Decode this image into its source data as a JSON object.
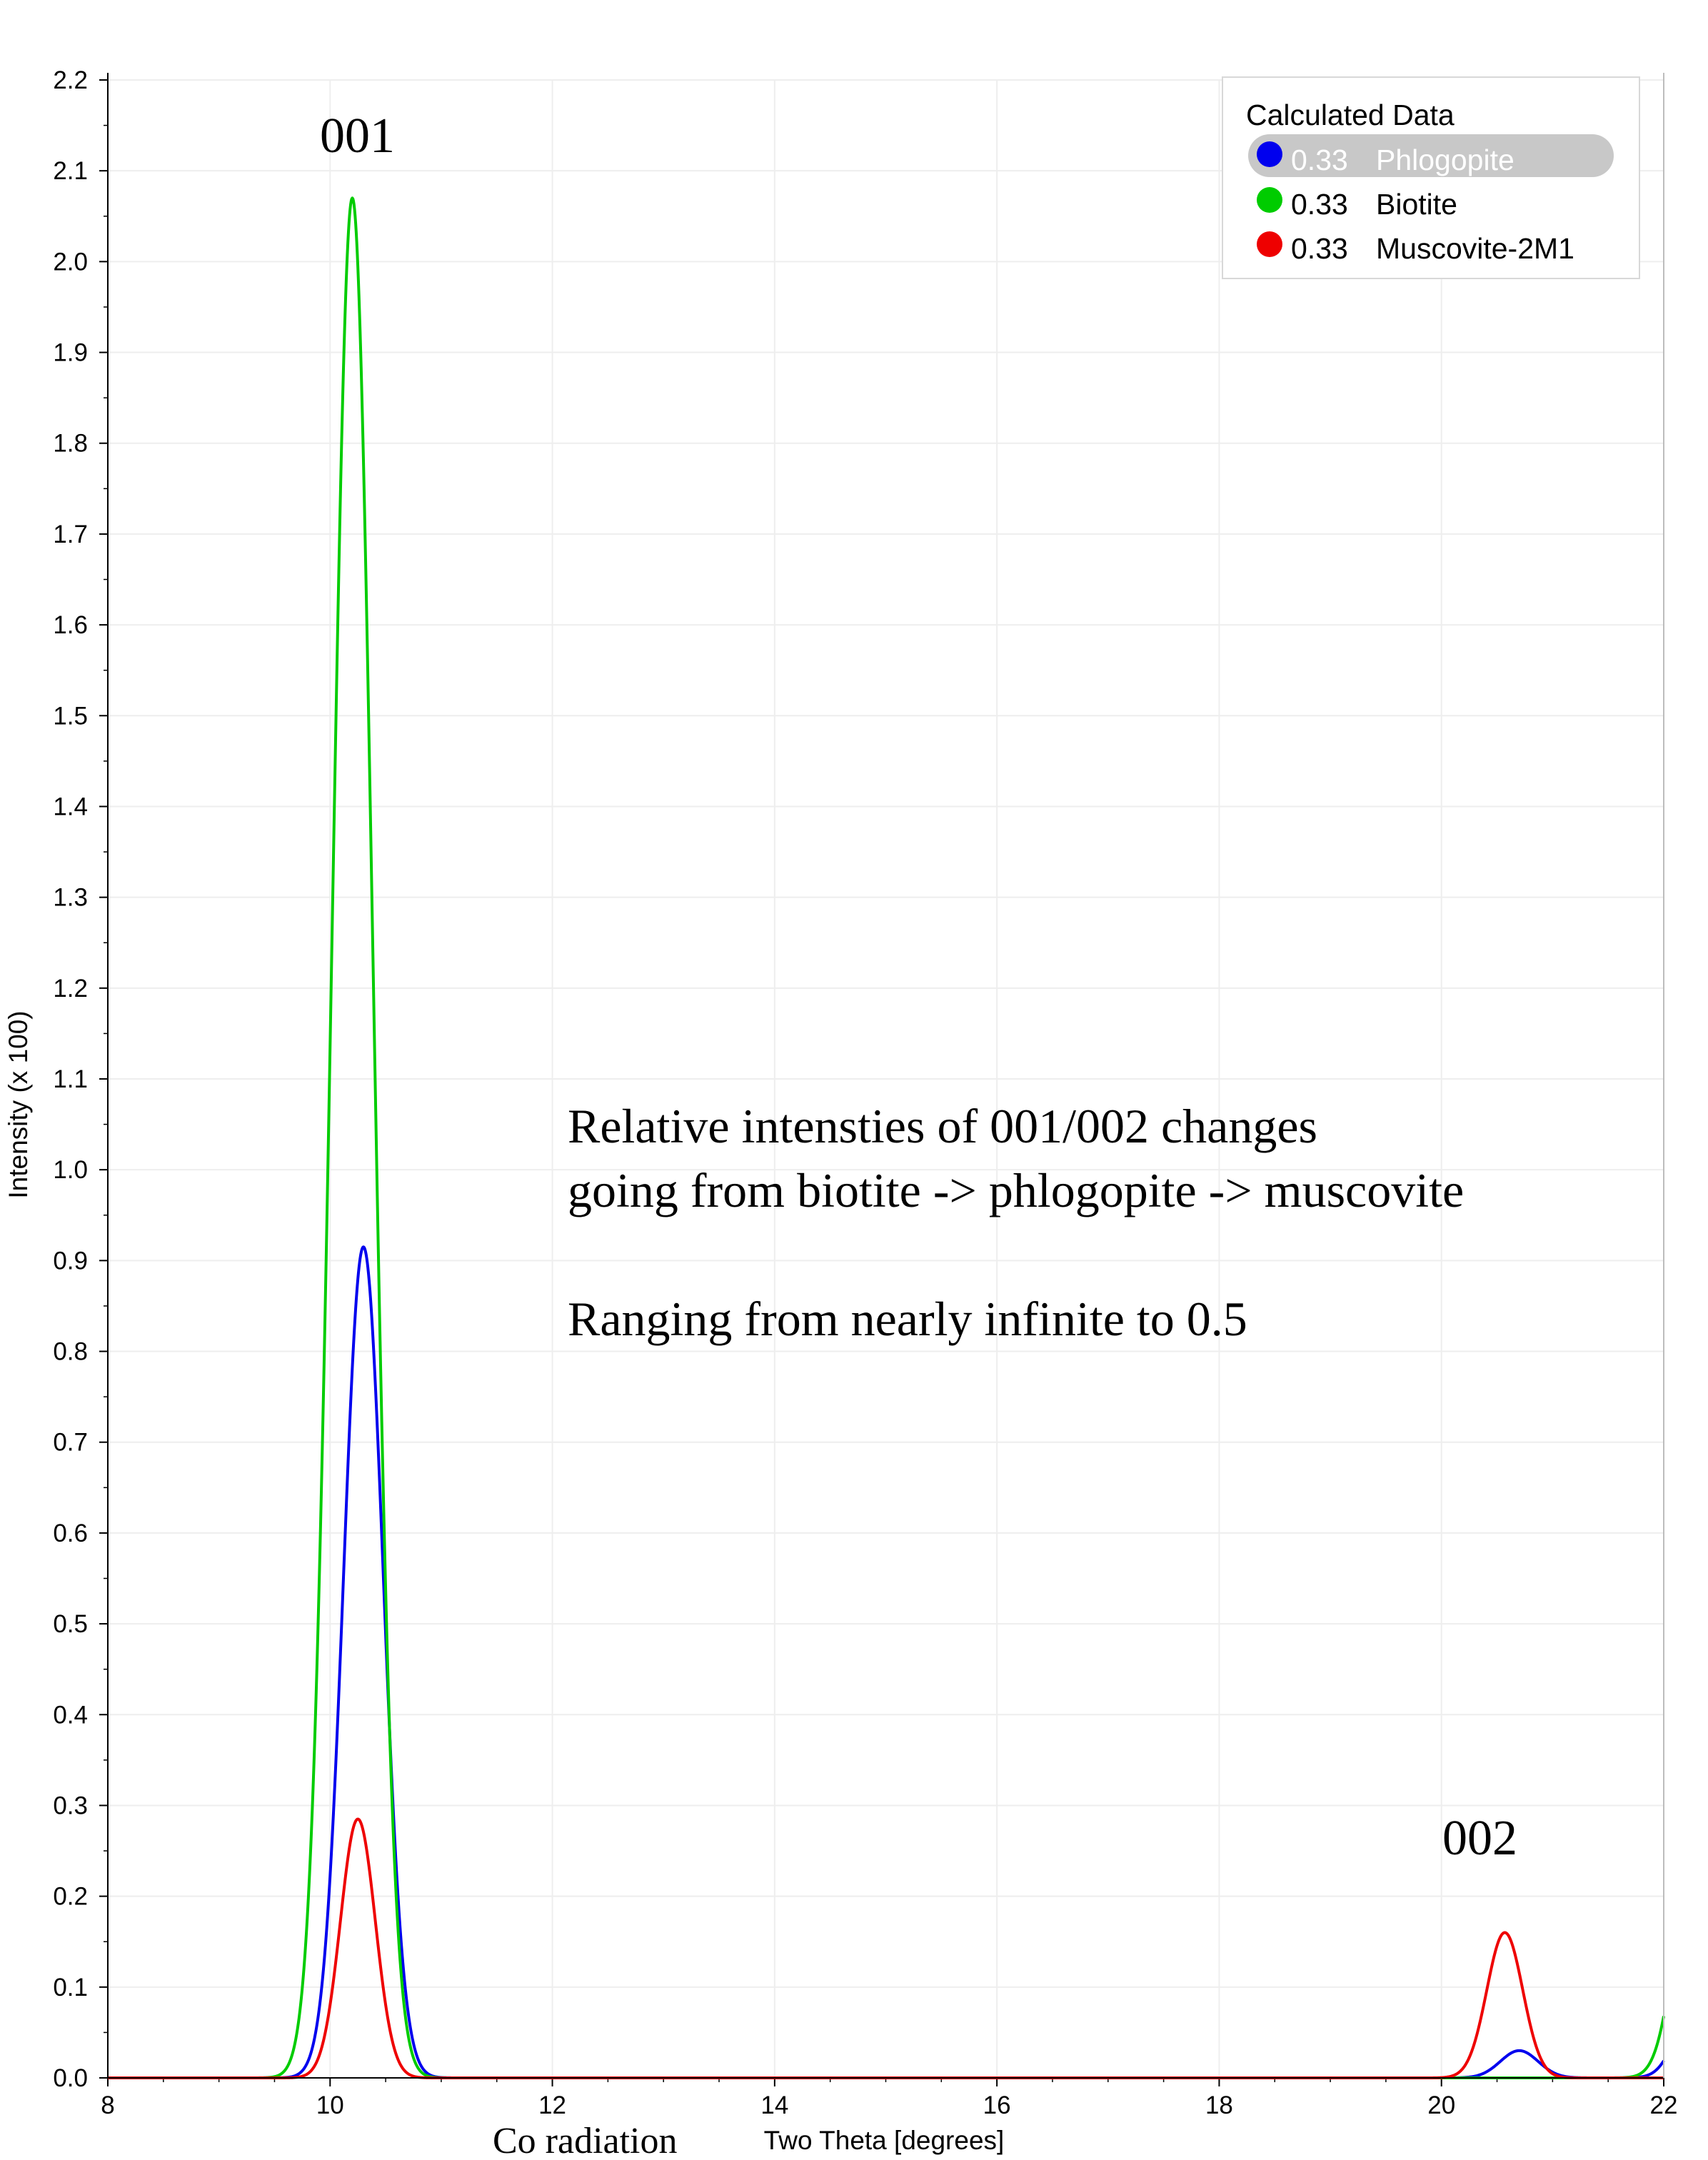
{
  "chart_data": {
    "type": "line",
    "xlabel": "Two Theta [degrees]",
    "ylabel": "Intensity (x 100)",
    "xlim": [
      8,
      22
    ],
    "ylim": [
      0,
      2.2
    ],
    "x_ticks": [
      "8",
      "10",
      "12",
      "14",
      "16",
      "18",
      "20",
      "22"
    ],
    "y_ticks": [
      "0.0",
      "0.1",
      "0.2",
      "0.3",
      "0.4",
      "0.5",
      "0.6",
      "0.7",
      "0.8",
      "0.9",
      "1.0",
      "1.1",
      "1.2",
      "1.3",
      "1.4",
      "1.5",
      "1.6",
      "1.7",
      "1.8",
      "1.9",
      "2.0",
      "2.1",
      "2.2"
    ],
    "grid": true,
    "legend": {
      "title": "Calculated Data",
      "placement": "top-right",
      "highlighted_entry": 0,
      "entries": [
        {
          "fraction": "0.33",
          "name": "Phlogopite"
        },
        {
          "fraction": "0.33",
          "name": "Biotite"
        },
        {
          "fraction": "0.33",
          "name": "Muscovite-2M1"
        }
      ]
    },
    "series": [
      {
        "name": "Phlogopite",
        "color": "#0000ee",
        "peaks": [
          {
            "center": 10.3,
            "height": 0.915,
            "fwhm": 0.42
          },
          {
            "center": 20.7,
            "height": 0.03,
            "fwhm": 0.4
          },
          {
            "center": 22.3,
            "height": 0.09,
            "fwhm": 0.4
          }
        ]
      },
      {
        "name": "Biotite",
        "color": "#00cc00",
        "peaks": [
          {
            "center": 10.2,
            "height": 2.07,
            "fwhm": 0.43
          },
          {
            "center": 22.3,
            "height": 0.28,
            "fwhm": 0.42
          }
        ]
      },
      {
        "name": "Muscovite-2M1",
        "color": "#ee0000",
        "peaks": [
          {
            "center": 10.25,
            "height": 0.285,
            "fwhm": 0.37
          },
          {
            "center": 20.57,
            "height": 0.16,
            "fwhm": 0.38
          }
        ]
      }
    ],
    "annotations": [
      {
        "id": "peak-001",
        "text": "001"
      },
      {
        "id": "peak-002",
        "text": "002"
      },
      {
        "id": "radiation",
        "text": "Co radiation"
      }
    ],
    "note_lines": [
      "Relative intensties of 001/002 changes",
      "going from biotite -> phlogopite -> muscovite",
      "",
      "Ranging from nearly infinite to 0.5"
    ]
  }
}
